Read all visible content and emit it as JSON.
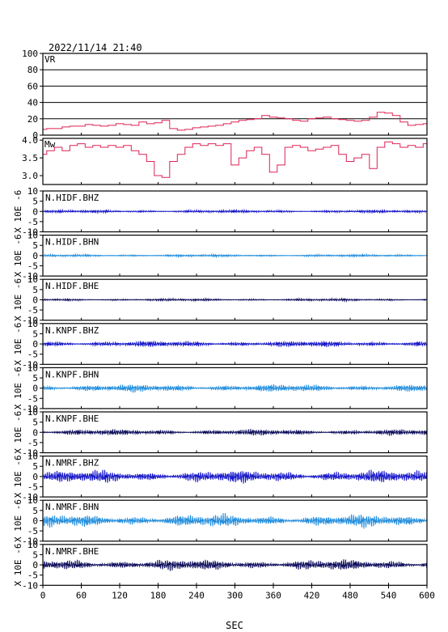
{
  "header": {
    "datetime": "2022/11/14 21:40"
  },
  "chart_data": [
    {
      "type": "line",
      "name": "VR",
      "ylim": [
        0,
        100
      ],
      "yticks": [
        "100",
        "80",
        "60",
        "40",
        "20",
        "0"
      ],
      "grid": true,
      "color": "#dd2255",
      "x": [
        0,
        12,
        24,
        36,
        48,
        60,
        72,
        84,
        96,
        108,
        120,
        132,
        144,
        156,
        168,
        180,
        192,
        204,
        216,
        228,
        240,
        252,
        264,
        276,
        288,
        300,
        312,
        324,
        336,
        348,
        360,
        372,
        384,
        396,
        408,
        420,
        432,
        444,
        456,
        468,
        480,
        492,
        504,
        516,
        528,
        540,
        552,
        564,
        576,
        588,
        600
      ],
      "values": [
        7,
        8,
        8,
        10,
        11,
        11,
        13,
        12,
        11,
        12,
        14,
        13,
        12,
        16,
        14,
        15,
        18,
        8,
        6,
        7,
        9,
        10,
        11,
        12,
        14,
        16,
        18,
        19,
        20,
        24,
        22,
        21,
        20,
        18,
        17,
        20,
        21,
        22,
        20,
        19,
        18,
        17,
        18,
        22,
        28,
        27,
        24,
        16,
        12,
        13,
        14
      ]
    },
    {
      "type": "line",
      "name": "Mw",
      "ylim": [
        2.75,
        4.05
      ],
      "yticks": [
        "4.0",
        "3.5",
        "3.0"
      ],
      "grid": false,
      "color": "#dd2255",
      "x": [
        0,
        12,
        24,
        36,
        48,
        60,
        72,
        84,
        96,
        108,
        120,
        132,
        144,
        156,
        168,
        180,
        192,
        204,
        216,
        228,
        240,
        252,
        264,
        276,
        288,
        300,
        312,
        324,
        336,
        348,
        360,
        372,
        384,
        396,
        408,
        420,
        432,
        444,
        456,
        468,
        480,
        492,
        504,
        516,
        528,
        540,
        552,
        564,
        576,
        588,
        600
      ],
      "values": [
        3.6,
        3.7,
        3.8,
        3.7,
        3.85,
        3.9,
        3.8,
        3.85,
        3.8,
        3.85,
        3.8,
        3.85,
        3.7,
        3.6,
        3.4,
        3.0,
        2.95,
        3.4,
        3.6,
        3.8,
        3.9,
        3.85,
        3.9,
        3.85,
        3.9,
        3.3,
        3.5,
        3.7,
        3.8,
        3.6,
        3.1,
        3.3,
        3.8,
        3.85,
        3.8,
        3.7,
        3.75,
        3.8,
        3.85,
        3.6,
        3.4,
        3.5,
        3.6,
        3.2,
        3.8,
        3.95,
        3.9,
        3.8,
        3.85,
        3.8,
        3.9
      ]
    }
  ],
  "waveforms": [
    {
      "station": "N.HIDF.BHZ",
      "color": "#1414c8",
      "amp": 0.6
    },
    {
      "station": "N.HIDF.BHN",
      "color": "#1e8cdc",
      "amp": 0.5
    },
    {
      "station": "N.HIDF.BHE",
      "color": "#0a0a5a",
      "amp": 0.5
    },
    {
      "station": "N.KNPF.BHZ",
      "color": "#1414c8",
      "amp": 1.2
    },
    {
      "station": "N.KNPF.BHN",
      "color": "#1e8cdc",
      "amp": 1.5
    },
    {
      "station": "N.KNPF.BHE",
      "color": "#0a0a5a",
      "amp": 1.2
    },
    {
      "station": "N.NMRF.BHZ",
      "color": "#1414c8",
      "amp": 2.6
    },
    {
      "station": "N.NMRF.BHN",
      "color": "#1e8cdc",
      "amp": 2.6
    },
    {
      "station": "N.NMRF.BHE",
      "color": "#0a0a5a",
      "amp": 2.2
    }
  ],
  "waveform_axis": {
    "ylim": [
      -10,
      10
    ],
    "yticks": [
      "10",
      "5",
      "0",
      "-5",
      "-10"
    ],
    "ylabel": "X 10E -6"
  },
  "xaxis": {
    "xlim": [
      0,
      600
    ],
    "ticks": [
      "0",
      "60",
      "120",
      "180",
      "240",
      "300",
      "360",
      "420",
      "480",
      "540",
      "600"
    ],
    "xlabel": "SEC"
  }
}
